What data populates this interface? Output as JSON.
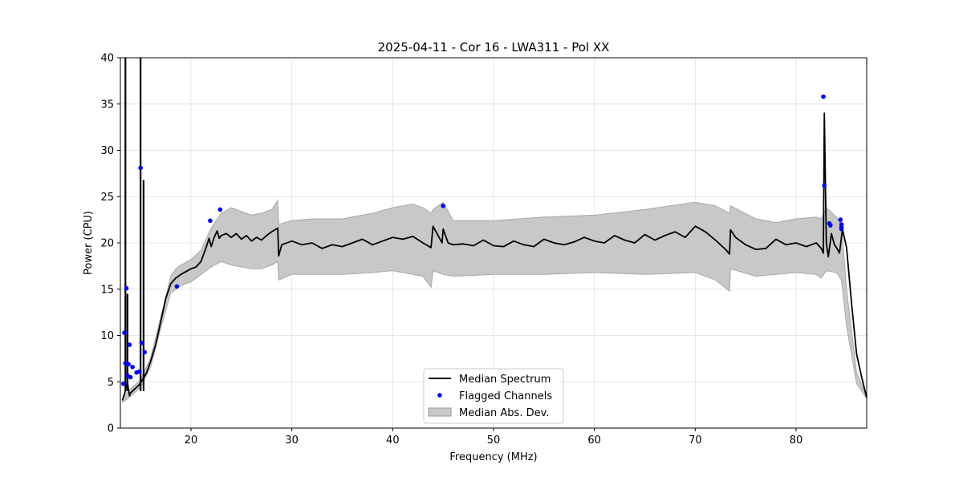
{
  "chart_data": {
    "type": "line",
    "title": "2025-04-11 - Cor 16 - LWA311 - Pol XX",
    "xlabel": "Frequency (MHz)",
    "ylabel": "Power (CPU)",
    "xlim": [
      13.0,
      87.0
    ],
    "ylim": [
      0,
      40
    ],
    "xticks": [
      20,
      30,
      40,
      50,
      60,
      70,
      80
    ],
    "yticks": [
      0,
      5,
      10,
      15,
      20,
      25,
      30,
      35,
      40
    ],
    "grid": true,
    "legend": {
      "position": "bottom-center",
      "entries": [
        "Median Spectrum",
        "Flagged Channels",
        "Median Abs. Dev."
      ]
    },
    "series": [
      {
        "name": "Median Spectrum",
        "color": "#000000",
        "x": [
          13.2,
          13.5,
          13.7,
          13.8,
          13.9,
          14.0,
          14.2,
          14.5,
          14.8,
          15.0,
          15.3,
          15.6,
          16.0,
          16.5,
          17.0,
          17.5,
          18.0,
          18.5,
          19.0,
          19.5,
          20.0,
          20.5,
          21.0,
          21.5,
          21.8,
          22.0,
          22.3,
          22.6,
          22.8,
          23.0,
          23.5,
          24.0,
          24.5,
          25.0,
          25.5,
          26.0,
          26.5,
          27.0,
          27.5,
          28.0,
          28.6,
          28.7,
          29.0,
          30.0,
          31.0,
          32.0,
          33.0,
          34.0,
          35.0,
          36.0,
          37.0,
          38.0,
          39.0,
          40.0,
          41.0,
          42.0,
          43.0,
          43.8,
          44.0,
          44.9,
          45.0,
          45.5,
          46.0,
          47.0,
          48.0,
          49.0,
          50.0,
          51.0,
          52.0,
          53.0,
          54.0,
          55.0,
          56.0,
          57.0,
          58.0,
          59.0,
          60.0,
          61.0,
          62.0,
          63.0,
          64.0,
          65.0,
          66.0,
          67.0,
          68.0,
          69.0,
          70.0,
          71.0,
          72.0,
          73.0,
          73.4,
          73.5,
          74.0,
          75.0,
          76.0,
          77.0,
          78.0,
          79.0,
          80.0,
          81.0,
          82.0,
          82.5,
          82.7,
          82.8,
          83.0,
          83.2,
          83.5,
          83.8,
          84.0,
          84.3,
          84.6,
          85.0,
          85.5,
          86.0,
          86.5,
          87.0
        ],
        "y": [
          3.0,
          4.0,
          5.0,
          4.2,
          3.5,
          3.8,
          4.0,
          4.3,
          4.6,
          4.9,
          5.4,
          6.0,
          7.2,
          9.0,
          11.5,
          14.0,
          15.6,
          16.2,
          16.6,
          16.9,
          17.2,
          17.4,
          18.0,
          19.5,
          20.5,
          19.6,
          20.6,
          21.3,
          20.5,
          20.8,
          21.0,
          20.6,
          21.0,
          20.4,
          20.8,
          20.2,
          20.6,
          20.3,
          20.8,
          21.2,
          21.6,
          18.6,
          19.8,
          20.2,
          19.8,
          20.0,
          19.4,
          19.8,
          19.6,
          20.0,
          20.4,
          19.8,
          20.2,
          20.6,
          20.4,
          20.7,
          20.0,
          19.5,
          21.8,
          20.0,
          21.5,
          20.0,
          19.8,
          19.9,
          19.7,
          20.3,
          19.7,
          19.6,
          20.2,
          19.8,
          19.6,
          20.4,
          20.0,
          19.8,
          20.1,
          20.6,
          20.2,
          20.0,
          20.8,
          20.3,
          20.0,
          20.9,
          20.3,
          20.8,
          21.2,
          20.6,
          21.8,
          21.2,
          20.3,
          19.3,
          18.8,
          21.4,
          20.6,
          19.8,
          19.3,
          19.4,
          20.4,
          19.8,
          20.0,
          19.6,
          20.0,
          19.4,
          18.9,
          34.0,
          20.0,
          18.5,
          21.0,
          19.8,
          19.5,
          18.9,
          21.5,
          19.5,
          13.5,
          8.0,
          5.5,
          3.3
        ]
      },
      {
        "name": "Median Abs. Dev.",
        "color": "#c8c8c8",
        "x": [
          13.2,
          14.0,
          15.0,
          16.0,
          17.0,
          18.0,
          18.5,
          19.0,
          20.0,
          21.0,
          22.0,
          23.0,
          24.0,
          25.0,
          26.0,
          27.0,
          28.0,
          28.6,
          28.7,
          30.0,
          32.0,
          35.0,
          38.0,
          40.0,
          42.0,
          43.0,
          43.8,
          44.0,
          45.0,
          46.0,
          50.0,
          55.0,
          60.0,
          65.0,
          70.0,
          72.0,
          73.4,
          73.5,
          76.0,
          78.0,
          80.0,
          82.0,
          82.5,
          83.0,
          84.0,
          84.5,
          85.0,
          86.0,
          87.0
        ],
        "upper": [
          3.2,
          4.2,
          5.2,
          7.6,
          12.0,
          16.4,
          17.2,
          17.6,
          18.2,
          19.2,
          21.6,
          23.2,
          23.8,
          23.4,
          23.0,
          23.2,
          23.6,
          24.6,
          22.0,
          22.4,
          22.6,
          22.6,
          23.2,
          23.8,
          24.2,
          23.8,
          23.2,
          23.6,
          24.4,
          22.4,
          22.4,
          22.8,
          23.0,
          23.6,
          24.4,
          24.0,
          23.2,
          24.0,
          22.6,
          22.2,
          22.6,
          22.8,
          22.6,
          23.8,
          22.8,
          22.0,
          15.0,
          6.0,
          3.4
        ],
        "lower": [
          2.8,
          3.4,
          4.4,
          6.6,
          10.8,
          14.6,
          15.0,
          15.4,
          15.8,
          16.6,
          17.4,
          18.0,
          17.6,
          17.4,
          17.2,
          17.2,
          17.6,
          18.0,
          16.0,
          16.6,
          16.6,
          16.6,
          16.8,
          17.0,
          16.6,
          16.4,
          15.2,
          17.0,
          16.6,
          16.4,
          16.6,
          16.6,
          16.8,
          16.6,
          16.8,
          16.0,
          14.8,
          17.2,
          16.4,
          16.6,
          16.8,
          16.6,
          16.2,
          17.0,
          16.8,
          16.0,
          11.0,
          4.8,
          3.2
        ]
      },
      {
        "name": "Flagged Channels",
        "color": "#0000ff",
        "x": [
          13.3,
          13.4,
          13.5,
          13.6,
          13.7,
          13.8,
          13.9,
          14.0,
          14.2,
          14.6,
          14.9,
          15.0,
          15.1,
          15.4,
          18.6,
          21.9,
          22.9,
          45.0,
          82.7,
          82.8,
          83.3,
          83.4,
          84.4,
          84.5,
          84.5,
          84.5
        ],
        "y": [
          4.8,
          10.3,
          7.0,
          15.1,
          5.7,
          6.9,
          9.0,
          5.5,
          6.6,
          6.0,
          6.1,
          28.1,
          9.2,
          8.2,
          15.3,
          22.4,
          23.6,
          24.0,
          35.8,
          26.2,
          22.1,
          21.9,
          22.5,
          22.0,
          21.7,
          21.5
        ]
      }
    ],
    "spikes": [
      {
        "x": 13.5,
        "y": 40.0
      },
      {
        "x": 13.7,
        "y": 14.5
      },
      {
        "x": 15.0,
        "y": 40.0
      },
      {
        "x": 15.3,
        "y": 26.8
      }
    ]
  }
}
